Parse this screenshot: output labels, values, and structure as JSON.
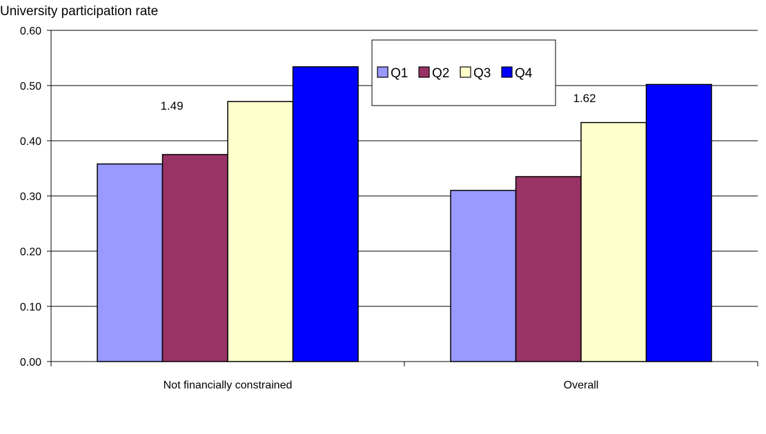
{
  "chart_data": {
    "type": "bar",
    "ylabel": "University participation rate",
    "xlabel": "",
    "categories": [
      "Not financially constrained",
      "Overall"
    ],
    "series": [
      {
        "name": "Q1",
        "color": "#9999ff",
        "values": [
          0.358,
          0.31
        ]
      },
      {
        "name": "Q2",
        "color": "#993366",
        "values": [
          0.375,
          0.335
        ]
      },
      {
        "name": "Q3",
        "color": "#ffffcc",
        "values": [
          0.471,
          0.433
        ]
      },
      {
        "name": "Q4",
        "color": "#0000ff",
        "values": [
          0.534,
          0.502
        ]
      }
    ],
    "ylim": [
      0,
      0.6
    ],
    "yticks": [
      "0.00",
      "0.10",
      "0.20",
      "0.30",
      "0.40",
      "0.50",
      "0.60"
    ],
    "annotations": [
      "1.49",
      "1.62"
    ],
    "grid": true,
    "legend": "top-center"
  }
}
